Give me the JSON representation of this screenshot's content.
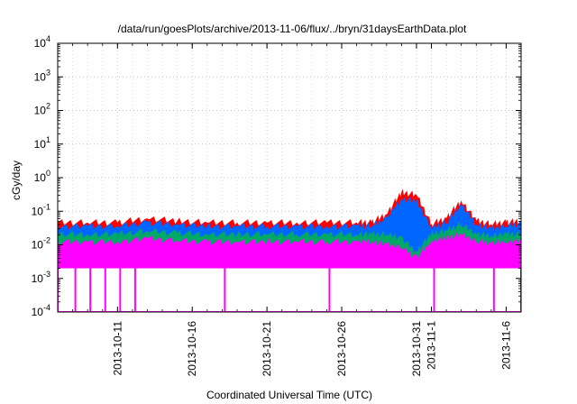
{
  "chart_data": {
    "type": "line",
    "title": "/data/run/goesPlots/archive/2013-11-06/flux/../bryn/31daysEarthData.plot",
    "xlabel": "Coordinated Universal Time (UTC)",
    "ylabel": "cGy/day",
    "xlim": [
      "2013-10-07",
      "2013-11-07"
    ],
    "ylim": [
      0.0001,
      10000
    ],
    "yscale": "log",
    "grid": true,
    "legend": "none",
    "x_ticks": [
      "2013-10-11",
      "2013-10-16",
      "2013-10-21",
      "2013-10-26",
      "2013-10-31",
      "2013-11-1",
      "2013-11-6"
    ],
    "y_ticks": [
      {
        "value": 0.0001,
        "base": "10",
        "exp": "-4"
      },
      {
        "value": 0.001,
        "base": "10",
        "exp": "-3"
      },
      {
        "value": 0.01,
        "base": "10",
        "exp": "-2"
      },
      {
        "value": 0.1,
        "base": "10",
        "exp": "-1"
      },
      {
        "value": 1,
        "base": "10",
        "exp": "0"
      },
      {
        "value": 10,
        "base": "10",
        "exp": "1"
      },
      {
        "value": 100,
        "base": "10",
        "exp": "2"
      },
      {
        "value": 1000,
        "base": "10",
        "exp": "3"
      },
      {
        "value": 10000,
        "base": "10",
        "exp": "4"
      }
    ],
    "x": [
      "2013-10-07",
      "2013-10-09",
      "2013-10-11",
      "2013-10-13",
      "2013-10-15",
      "2013-10-17",
      "2013-10-19",
      "2013-10-21",
      "2013-10-23",
      "2013-10-25",
      "2013-10-27",
      "2013-10-28",
      "2013-10-29",
      "2013-10-30",
      "2013-10-31",
      "2013-11-01",
      "2013-11-02",
      "2013-11-03",
      "2013-11-04",
      "2013-11-05",
      "2013-11-06",
      "2013-11-07"
    ],
    "series": [
      {
        "color": "#ff0000",
        "values": [
          0.045,
          0.045,
          0.045,
          0.06,
          0.05,
          0.045,
          0.045,
          0.045,
          0.045,
          0.045,
          0.045,
          0.045,
          0.08,
          0.35,
          0.3,
          0.04,
          0.06,
          0.2,
          0.05,
          0.04,
          0.045,
          0.05
        ]
      },
      {
        "color": "#0066ff",
        "values": [
          0.035,
          0.035,
          0.035,
          0.045,
          0.04,
          0.035,
          0.035,
          0.035,
          0.035,
          0.035,
          0.035,
          0.035,
          0.06,
          0.22,
          0.2,
          0.03,
          0.045,
          0.15,
          0.04,
          0.03,
          0.035,
          0.04
        ]
      },
      {
        "color": "#00aa66",
        "values": [
          0.02,
          0.02,
          0.02,
          0.025,
          0.022,
          0.02,
          0.02,
          0.02,
          0.02,
          0.02,
          0.02,
          0.02,
          0.02,
          0.015,
          0.006,
          0.02,
          0.025,
          0.04,
          0.02,
          0.018,
          0.02,
          0.02
        ]
      },
      {
        "color": "#ff00ff",
        "values": [
          0.012,
          0.012,
          0.012,
          0.015,
          0.013,
          0.012,
          0.012,
          0.012,
          0.012,
          0.012,
          0.012,
          0.012,
          0.01,
          0.008,
          0.004,
          0.012,
          0.015,
          0.02,
          0.012,
          0.011,
          0.012,
          0.012
        ]
      }
    ],
    "magenta_dips": [
      "2013-10-08",
      "2013-10-09",
      "2013-10-10",
      "2013-10-11",
      "2013-10-12",
      "2013-10-18",
      "2013-10-25",
      "2013-11-01",
      "2013-11-05"
    ],
    "magenta_dip_value": 0.0001
  }
}
